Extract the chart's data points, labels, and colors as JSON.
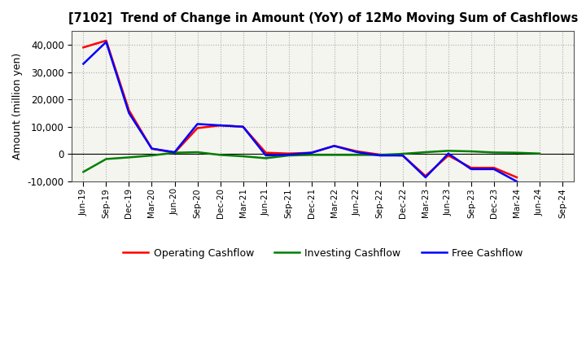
{
  "title": "[7102]  Trend of Change in Amount (YoY) of 12Mo Moving Sum of Cashflows",
  "ylabel": "Amount (million yen)",
  "figure_facecolor": "#ffffff",
  "plot_facecolor": "#f5f5f0",
  "grid_color": "#aaaaaa",
  "xlabels": [
    "Jun-19",
    "Sep-19",
    "Dec-19",
    "Mar-20",
    "Jun-20",
    "Sep-20",
    "Dec-20",
    "Mar-21",
    "Jun-21",
    "Sep-21",
    "Dec-21",
    "Mar-22",
    "Jun-22",
    "Sep-22",
    "Dec-22",
    "Mar-23",
    "Jun-23",
    "Sep-23",
    "Dec-23",
    "Mar-24",
    "Jun-24",
    "Sep-24"
  ],
  "operating": [
    39000,
    41500,
    16000,
    2000,
    500,
    9500,
    10500,
    10000,
    500,
    200,
    500,
    3000,
    1000,
    -200,
    -500,
    -8000,
    -500,
    -5000,
    -5000,
    -8500,
    null,
    null
  ],
  "investing": [
    -6500,
    -1800,
    -1200,
    -500,
    500,
    700,
    -300,
    -800,
    -1500,
    -500,
    -300,
    -300,
    -300,
    -300,
    100,
    700,
    1200,
    1000,
    600,
    500,
    200,
    null
  ],
  "free": [
    33000,
    41000,
    15000,
    2000,
    700,
    11000,
    10500,
    10000,
    -500,
    -200,
    500,
    3000,
    700,
    -500,
    -500,
    -8500,
    200,
    -5500,
    -5500,
    -10000,
    null,
    null
  ],
  "ylim": [
    -10000,
    45000
  ],
  "yticks": [
    -10000,
    0,
    10000,
    20000,
    30000,
    40000
  ],
  "operating_color": "#ff0000",
  "investing_color": "#008000",
  "free_color": "#0000ff",
  "linewidth": 1.8
}
